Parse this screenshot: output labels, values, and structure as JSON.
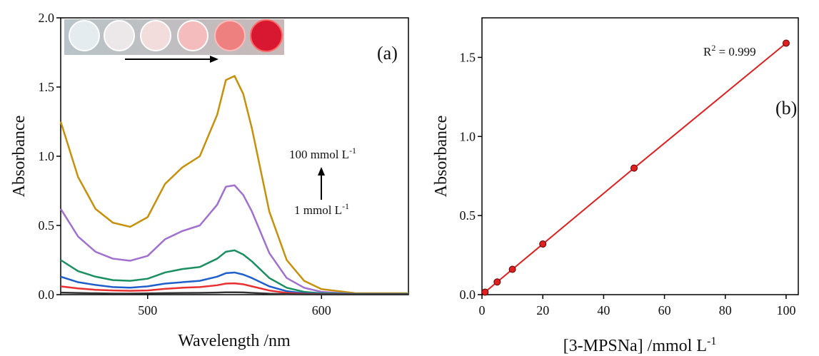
{
  "chart_data": [
    {
      "type": "line",
      "panel_label": "(a)",
      "x_label": "Wavelength /nm",
      "y_label": "Absorbance",
      "annotations": [
        {
          "text": "100 mmol L",
          "sup": "-1"
        },
        {
          "text": "1 mmol L",
          "sup": "-1"
        }
      ],
      "x": [
        450,
        460,
        470,
        480,
        490,
        500,
        510,
        520,
        530,
        540,
        545,
        550,
        555,
        560,
        570,
        580,
        590,
        600,
        620,
        650
      ],
      "series": [
        {
          "color": "#c8900a",
          "values": [
            1.25,
            0.85,
            0.62,
            0.52,
            0.49,
            0.56,
            0.8,
            0.92,
            1.0,
            1.3,
            1.55,
            1.58,
            1.45,
            1.2,
            0.6,
            0.25,
            0.1,
            0.04,
            0.01,
            0.01
          ]
        },
        {
          "color": "#a070d0",
          "values": [
            0.62,
            0.42,
            0.31,
            0.26,
            0.245,
            0.28,
            0.4,
            0.46,
            0.5,
            0.65,
            0.78,
            0.79,
            0.72,
            0.6,
            0.3,
            0.12,
            0.05,
            0.02,
            0.005,
            0.005
          ]
        },
        {
          "color": "#1a9060",
          "values": [
            0.25,
            0.17,
            0.13,
            0.105,
            0.1,
            0.115,
            0.16,
            0.185,
            0.2,
            0.26,
            0.31,
            0.32,
            0.29,
            0.24,
            0.12,
            0.05,
            0.02,
            0.01,
            0.005,
            0.005
          ]
        },
        {
          "color": "#1f5fcc",
          "values": [
            0.13,
            0.09,
            0.07,
            0.055,
            0.05,
            0.06,
            0.08,
            0.09,
            0.1,
            0.13,
            0.155,
            0.16,
            0.145,
            0.12,
            0.06,
            0.025,
            0.01,
            0.005,
            0.003,
            0.003
          ]
        },
        {
          "color": "#e83030",
          "values": [
            0.06,
            0.045,
            0.035,
            0.03,
            0.028,
            0.03,
            0.042,
            0.05,
            0.055,
            0.068,
            0.08,
            0.082,
            0.075,
            0.06,
            0.03,
            0.012,
            0.006,
            0.003,
            0.002,
            0.002
          ]
        },
        {
          "color": "#333333",
          "values": [
            0.015,
            0.012,
            0.01,
            0.008,
            0.008,
            0.009,
            0.011,
            0.012,
            0.013,
            0.015,
            0.017,
            0.017,
            0.016,
            0.013,
            0.007,
            0.004,
            0.002,
            0.001,
            0.001,
            0.001
          ]
        }
      ],
      "xlim": [
        450,
        650
      ],
      "xticks": [
        500,
        600
      ],
      "ylim": [
        0,
        2
      ],
      "yticks": [
        {
          "value": 0,
          "label": "0.0"
        },
        {
          "value": 0.5,
          "label": "0.5"
        },
        {
          "value": 1,
          "label": "1.0"
        },
        {
          "value": 1.5,
          "label": "1.5"
        },
        {
          "value": 2,
          "label": "2.0"
        }
      ]
    },
    {
      "type": "scatter",
      "panel_label": "(b)",
      "x_label": {
        "text": "[3-MPSNa] /mmol L",
        "sup": "-1"
      },
      "y_label": "Absorbance",
      "annotation": {
        "text": "R",
        "sup": "2",
        "rest": " = 0.999"
      },
      "x": [
        1,
        5,
        10,
        20,
        50,
        100
      ],
      "series": [
        {
          "color": "#e02020",
          "values": [
            0.016,
            0.08,
            0.16,
            0.32,
            0.8,
            1.59
          ]
        }
      ],
      "xlim": [
        0,
        104
      ],
      "xticks": [
        0,
        20,
        40,
        60,
        80,
        100
      ],
      "ylim": [
        0,
        1.75
      ],
      "yticks": [
        {
          "value": 0,
          "label": "0.0"
        },
        {
          "value": 0.5,
          "label": "0.5"
        },
        {
          "value": 1,
          "label": "1.0"
        },
        {
          "value": 1.5,
          "label": "1.5"
        }
      ]
    }
  ]
}
